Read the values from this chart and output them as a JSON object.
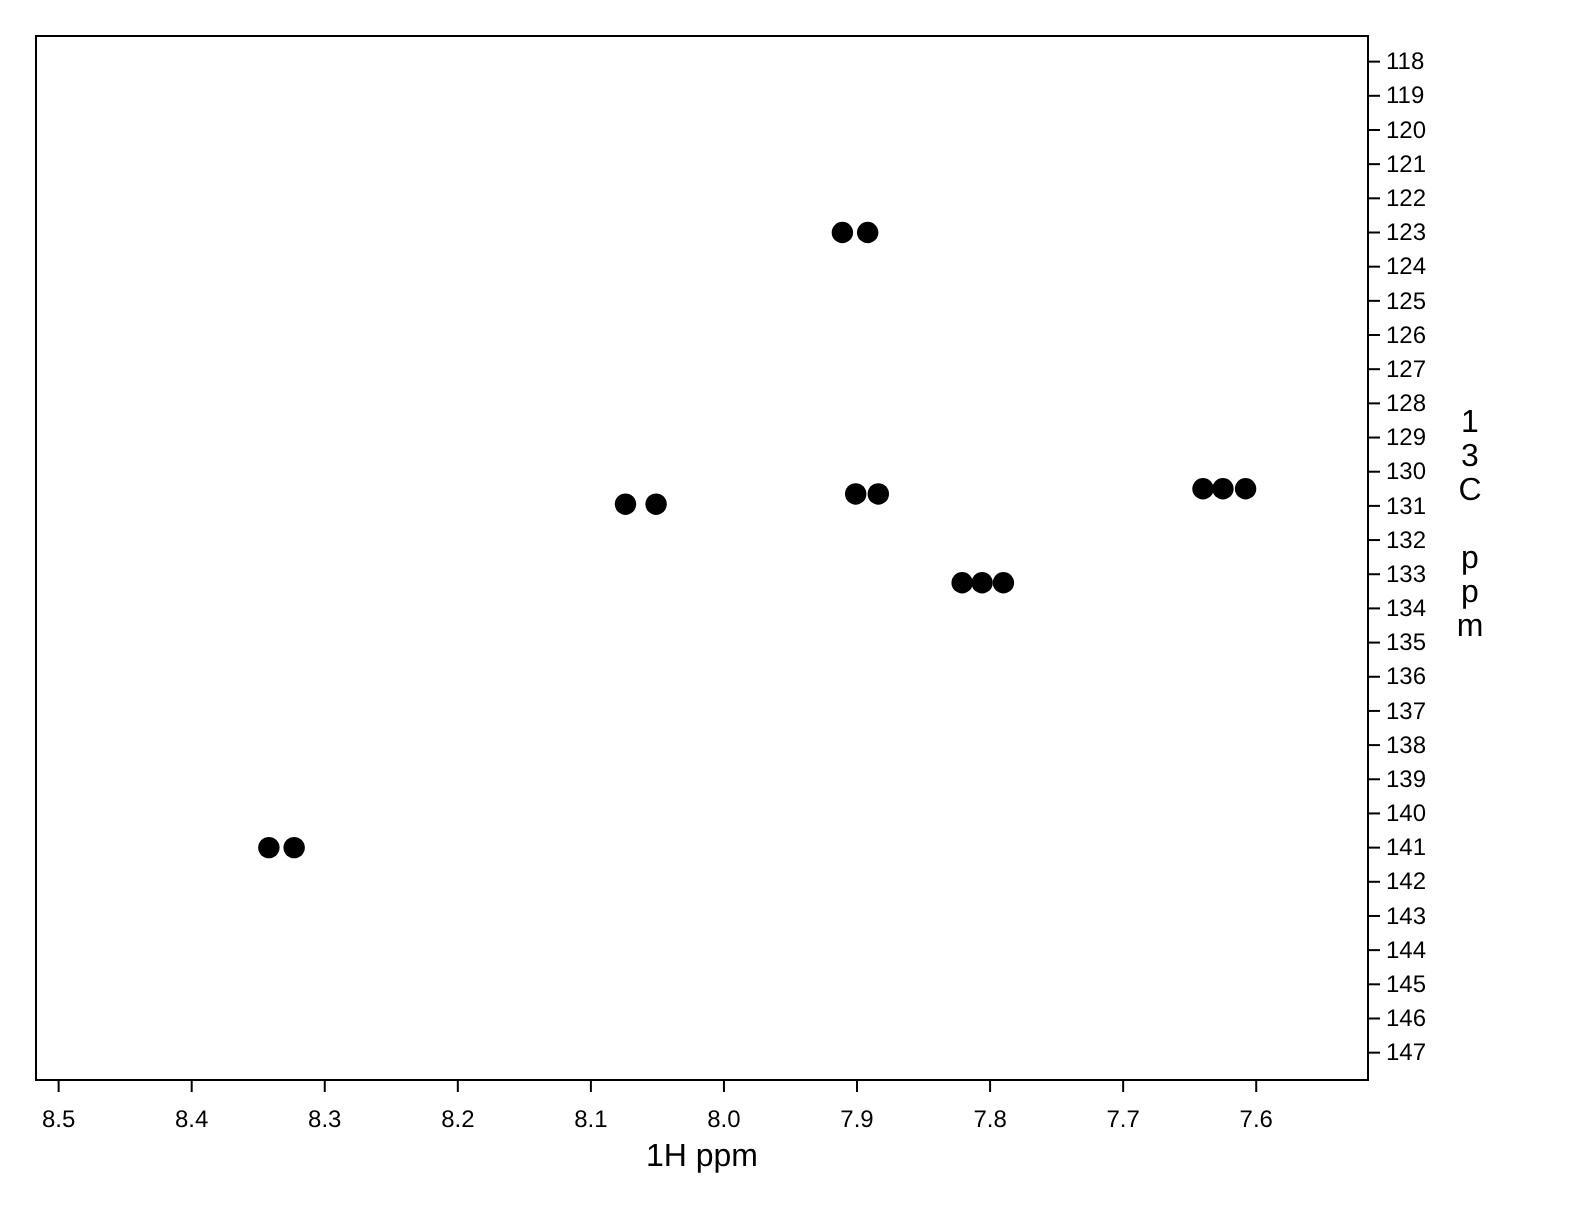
{
  "chart_data": {
    "type": "scatter",
    "xlabel": "1H ppm",
    "ylabel": "13C ppm",
    "x": [
      7.911,
      7.892,
      8.074,
      8.051,
      7.901,
      7.884,
      8.342,
      8.323,
      7.821,
      7.806,
      7.79,
      7.64,
      7.625,
      7.608
    ],
    "series": [
      {
        "color": "#000000",
        "values": [
          123.0,
          123.0,
          130.95,
          130.95,
          130.65,
          130.65,
          141.0,
          141.0,
          133.25,
          133.25,
          133.25,
          130.5,
          130.5,
          130.5
        ]
      }
    ],
    "marker": "circle",
    "xlim": [
      8.517,
      7.516
    ],
    "xticks": [
      8.5,
      8.4,
      8.3,
      8.2,
      8.1,
      {
        "value": 8.0,
        "label": "8.0"
      },
      7.9,
      7.8,
      7.7,
      7.6
    ],
    "ylim": [
      147.8,
      117.25
    ],
    "yticks": [
      118,
      119,
      120,
      121,
      122,
      123,
      124,
      125,
      126,
      127,
      128,
      129,
      130,
      131,
      132,
      133,
      134,
      135,
      136,
      137,
      138,
      139,
      140,
      141,
      142,
      143,
      144,
      145,
      146,
      147
    ],
    "grid": false
  }
}
